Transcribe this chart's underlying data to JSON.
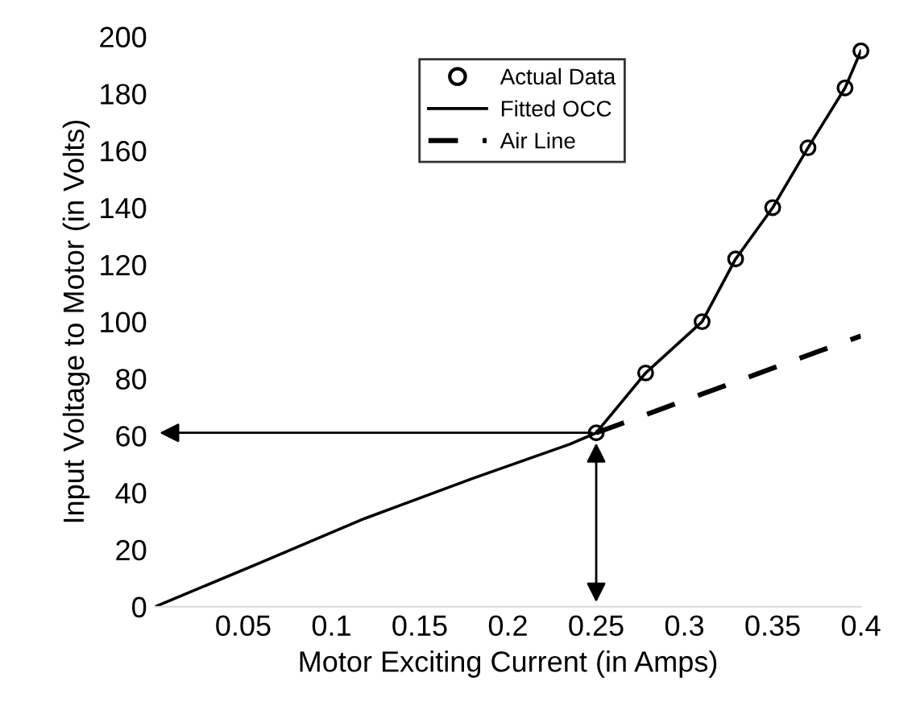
{
  "chart_data": {
    "type": "line",
    "xlabel": "Motor Exciting Current (in Amps)",
    "ylabel": "Input Voltage to Motor (in Volts)",
    "xlim": [
      0,
      0.4
    ],
    "xticks": [
      0.05,
      0.1,
      0.15,
      0.2,
      0.25,
      0.3,
      0.35,
      0.4
    ],
    "ylim": [
      0,
      200
    ],
    "yticks": [
      0,
      20,
      40,
      60,
      80,
      100,
      120,
      140,
      160,
      180,
      200
    ],
    "grid": false,
    "legend": "top",
    "series": [
      {
        "name": "Actual Data",
        "type": "scatter",
        "marker": "circle",
        "color": "#000000",
        "x": [
          0.25,
          0.278,
          0.31,
          0.329,
          0.35,
          0.37,
          0.391,
          0.4
        ],
        "values": [
          61,
          82,
          100,
          122,
          140,
          161,
          182,
          195
        ]
      },
      {
        "name": "Fitted OCC",
        "line_style": "solid",
        "color": "#000000",
        "x": [
          0,
          0.058,
          0.119,
          0.18,
          0.235,
          0.25,
          0.278,
          0.31,
          0.329,
          0.35,
          0.37,
          0.391,
          0.4
        ],
        "values": [
          0,
          15,
          31,
          45,
          57,
          61,
          82,
          100,
          122,
          140,
          161,
          182,
          195
        ]
      },
      {
        "name": "Air Line",
        "line_style": "dashed",
        "color": "#000000",
        "x": [
          0.25,
          0.4
        ],
        "values": [
          61,
          95
        ]
      }
    ]
  }
}
